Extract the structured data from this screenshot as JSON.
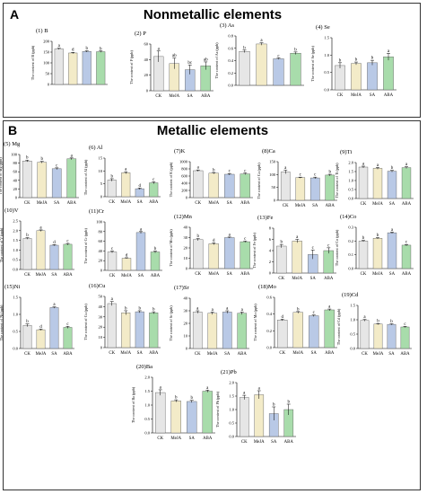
{
  "panel_a": {
    "letter": "A",
    "title": "Nonmetallic elements"
  },
  "panel_b": {
    "letter": "B",
    "title": "Metallic elements"
  },
  "colors": {
    "CK": "#e6e6e6",
    "MeJA": "#f3ebc8",
    "SA": "#b9c9e6",
    "ABA": "#a8dcab"
  },
  "chart_data": [
    {
      "type": "bar",
      "title": "(1) B",
      "ylabel": "The content of B (ppb)",
      "categories": [
        "CK",
        "MeJA",
        "SA",
        "ABA"
      ],
      "values": [
        165,
        146,
        153,
        152
      ],
      "errors": [
        3,
        3,
        3,
        3
      ],
      "letters": [
        "a",
        "d",
        "b",
        "b"
      ],
      "ylim": [
        0,
        200
      ],
      "yticks": [
        0,
        50,
        100,
        150,
        200
      ],
      "show_x": false
    },
    {
      "type": "bar",
      "title": "(2) P",
      "ylabel": "The content of P (ppb)",
      "categories": [
        "CK",
        "MeJA",
        "SA",
        "ABA"
      ],
      "values": [
        44,
        35,
        27,
        32
      ],
      "errors": [
        7,
        7,
        6,
        5
      ],
      "letters": [
        "a",
        "ab",
        "bc",
        "ab"
      ],
      "ylim": [
        0,
        60
      ],
      "yticks": [
        0,
        20,
        40,
        60
      ],
      "show_x": true
    },
    {
      "type": "bar",
      "title": "(3) As",
      "ylabel": "The content of As (ppb)",
      "categories": [
        "CK",
        "MeJA",
        "SA",
        "ABA"
      ],
      "values": [
        0.55,
        0.67,
        0.43,
        0.52
      ],
      "errors": [
        0.02,
        0.02,
        0.01,
        0.02
      ],
      "letters": [
        "b",
        "a",
        "c",
        "b"
      ],
      "ylim": [
        0,
        0.8
      ],
      "yticks": [
        0.0,
        0.2,
        0.4,
        0.6,
        0.8
      ],
      "show_x": false
    },
    {
      "type": "bar",
      "title": "(4) Se",
      "ylabel": "The content of Se (ppb)",
      "categories": [
        "CK",
        "MeJA",
        "SA",
        "ABA"
      ],
      "values": [
        0.7,
        0.76,
        0.78,
        0.95
      ],
      "errors": [
        0.08,
        0.04,
        0.07,
        0.1
      ],
      "letters": [
        "b",
        "b",
        "b",
        "a"
      ],
      "ylim": [
        0,
        1.5
      ],
      "yticks": [
        0.0,
        0.5,
        1.0,
        1.5
      ],
      "show_x": true
    },
    {
      "type": "bar",
      "title": "(5) Mg",
      "ylabel": "The content of Mg (ppb)",
      "categories": [
        "CK",
        "MeJA",
        "SA",
        "ABA"
      ],
      "values": [
        85,
        82,
        67,
        90
      ],
      "errors": [
        2,
        2,
        2,
        2
      ],
      "letters": [
        "b",
        "b",
        "c",
        "a"
      ],
      "ylim": [
        0,
        100
      ],
      "yticks": [
        0,
        20,
        40,
        60,
        80,
        100
      ],
      "show_x": true
    },
    {
      "type": "bar",
      "title": "(6) Al",
      "ylabel": "The content of Al (ppb)",
      "categories": [
        "CK",
        "MeJA",
        "SA",
        "ABA"
      ],
      "values": [
        6.5,
        9.3,
        3.1,
        5.4
      ],
      "errors": [
        0.5,
        0.4,
        0.3,
        0.4
      ],
      "letters": [
        "b",
        "a",
        "d",
        "c"
      ],
      "ylim": [
        0,
        15
      ],
      "yticks": [
        0,
        5,
        10,
        15
      ],
      "show_x": true
    },
    {
      "type": "bar",
      "title": "(7)K",
      "ylabel": "The content of K (ppb)",
      "categories": [
        "CK",
        "MeJA",
        "SA",
        "ABA"
      ],
      "values": [
        750,
        680,
        650,
        660
      ],
      "errors": [
        20,
        20,
        20,
        20
      ],
      "letters": [
        "a",
        "b",
        "c",
        "c"
      ],
      "ylim": [
        0,
        1000
      ],
      "yticks": [
        0,
        200,
        400,
        600,
        800,
        1000
      ],
      "show_x": true
    },
    {
      "type": "bar",
      "title": "(8)Ca",
      "ylabel": "The content of Ca (ppb)",
      "categories": [
        "CK",
        "MeJA",
        "SA",
        "ABA"
      ],
      "values": [
        110,
        88,
        87,
        98
      ],
      "errors": [
        7,
        2,
        3,
        3
      ],
      "letters": [
        "a",
        "c",
        "c",
        "b"
      ],
      "ylim": [
        0,
        150
      ],
      "yticks": [
        0,
        50,
        100,
        150
      ],
      "show_x": true
    },
    {
      "type": "bar",
      "title": "(9)Ti",
      "ylabel": "The content of Ti (ppb)",
      "categories": [
        "CK",
        "MeJA",
        "SA",
        "ABA"
      ],
      "values": [
        1.75,
        1.68,
        1.52,
        1.72
      ],
      "errors": [
        0.05,
        0.05,
        0.05,
        0.05
      ],
      "letters": [
        "a",
        "a",
        "b",
        "a"
      ],
      "ylim": [
        0,
        2.0
      ],
      "yticks": [
        0.0,
        0.5,
        1.0,
        1.5,
        2.0
      ],
      "show_x": true
    },
    {
      "type": "bar",
      "title": "(10)V",
      "ylabel": "The content of V (ppb)",
      "categories": [
        "CK",
        "MeJA",
        "SA",
        "ABA"
      ],
      "values": [
        1.6,
        2.0,
        1.25,
        1.3
      ],
      "errors": [
        0.04,
        0.04,
        0.03,
        0.04
      ],
      "letters": [
        "b",
        "a",
        "d",
        "c"
      ],
      "ylim": [
        0,
        2.5
      ],
      "yticks": [
        0.0,
        0.5,
        1.0,
        1.5,
        2.0,
        2.5
      ],
      "show_x": true
    },
    {
      "type": "bar",
      "title": "(11)Cr",
      "ylabel": "The content of Cr (ppb)",
      "categories": [
        "CK",
        "MeJA",
        "SA",
        "ABA"
      ],
      "values": [
        38,
        25,
        78,
        38
      ],
      "errors": [
        2,
        1,
        2,
        2
      ],
      "letters": [
        "c",
        "d",
        "a",
        "b"
      ],
      "ylim": [
        0,
        100
      ],
      "yticks": [
        0,
        20,
        40,
        60,
        80,
        100
      ],
      "show_x": true
    },
    {
      "type": "bar",
      "title": "(12)Mn",
      "ylabel": "The content of Mn (ppb)",
      "categories": [
        "CK",
        "MeJA",
        "SA",
        "ABA"
      ],
      "values": [
        28,
        24,
        30,
        26
      ],
      "errors": [
        1,
        1,
        0.5,
        0.6
      ],
      "letters": [
        "b",
        "d",
        "a",
        "c"
      ],
      "ylim": [
        0,
        40
      ],
      "yticks": [
        0,
        10,
        20,
        30,
        40
      ],
      "show_x": true
    },
    {
      "type": "bar",
      "title": "(13)Fe",
      "ylabel": "The content of Fe (ppb)",
      "categories": [
        "CK",
        "MeJA",
        "SA",
        "ABA"
      ],
      "values": [
        4.8,
        5.7,
        3.3,
        4.0
      ],
      "errors": [
        0.3,
        0.3,
        0.8,
        0.5
      ],
      "letters": [
        "b",
        "a",
        "c",
        "c"
      ],
      "ylim": [
        0,
        8
      ],
      "yticks": [
        0,
        2,
        4,
        6,
        8
      ],
      "show_x": true
    },
    {
      "type": "bar",
      "title": "(14)Co",
      "ylabel": "The content of Co (ppb)",
      "categories": [
        "CK",
        "MeJA",
        "SA",
        "ABA"
      ],
      "values": [
        0.2,
        0.22,
        0.26,
        0.17
      ],
      "errors": [
        0.005,
        0.005,
        0.005,
        0.005
      ],
      "letters": [
        "b",
        "b",
        "a",
        "c"
      ],
      "ylim": [
        0,
        0.3
      ],
      "yticks": [
        0.0,
        0.1,
        0.2,
        0.3
      ],
      "show_x": true
    },
    {
      "type": "bar",
      "title": "(15)Ni",
      "ylabel": "The content of Ni (ppb)",
      "categories": [
        "CK",
        "MeJA",
        "SA",
        "ABA"
      ],
      "values": [
        0.68,
        0.55,
        1.2,
        0.62
      ],
      "errors": [
        0.04,
        0.02,
        0.02,
        0.03
      ],
      "letters": [
        "b",
        "d",
        "a",
        "c"
      ],
      "ylim": [
        0,
        1.5
      ],
      "yticks": [
        0.0,
        0.5,
        1.0,
        1.5
      ],
      "show_x": true
    },
    {
      "type": "bar",
      "title": "(16)Cu",
      "ylabel": "The content of Cu (ppb)",
      "categories": [
        "CK",
        "MeJA",
        "SA",
        "ABA"
      ],
      "values": [
        43,
        34,
        35,
        34
      ],
      "errors": [
        2,
        2,
        1,
        1
      ],
      "letters": [
        "a",
        "b",
        "b",
        "b"
      ],
      "ylim": [
        0,
        50
      ],
      "yticks": [
        0,
        10,
        20,
        30,
        40,
        50
      ],
      "show_x": true
    },
    {
      "type": "bar",
      "title": "(17)Sr",
      "ylabel": "The content of Sr (ppb)",
      "categories": [
        "CK",
        "MeJA",
        "SA",
        "ABA"
      ],
      "values": [
        29,
        28,
        29,
        28
      ],
      "errors": [
        1,
        1,
        1,
        1
      ],
      "letters": [
        "a",
        "a",
        "a",
        "a"
      ],
      "ylim": [
        0,
        40
      ],
      "yticks": [
        0,
        10,
        20,
        30,
        40
      ],
      "show_x": true
    },
    {
      "type": "bar",
      "title": "(18)Mo",
      "ylabel": "The content of Mo (ppb)",
      "categories": [
        "CK",
        "MeJA",
        "SA",
        "ABA"
      ],
      "values": [
        0.33,
        0.42,
        0.38,
        0.45
      ],
      "errors": [
        0.01,
        0.01,
        0.01,
        0.01
      ],
      "letters": [
        "d",
        "b",
        "c",
        "a"
      ],
      "ylim": [
        0,
        0.6
      ],
      "yticks": [
        0.0,
        0.2,
        0.4,
        0.6
      ],
      "show_x": true
    },
    {
      "type": "bar",
      "title": "(19)Cd",
      "ylabel": "The content of Cd (ppb)",
      "categories": [
        "CK",
        "MeJA",
        "SA",
        "ABA"
      ],
      "values": [
        0.98,
        0.85,
        0.84,
        0.75
      ],
      "errors": [
        0.03,
        0.02,
        0.02,
        0.02
      ],
      "letters": [
        "a",
        "b",
        "b",
        "c"
      ],
      "ylim": [
        0,
        1.5
      ],
      "yticks": [
        0.0,
        0.5,
        1.0,
        1.5
      ],
      "show_x": true
    },
    {
      "type": "bar",
      "title": "(20)Ba",
      "ylabel": "The content of Ba (ppb)",
      "categories": [
        "CK",
        "MeJA",
        "SA",
        "ABA"
      ],
      "values": [
        1.45,
        1.15,
        1.13,
        1.5
      ],
      "errors": [
        0.1,
        0.04,
        0.04,
        0.04
      ],
      "letters": [
        "a",
        "b",
        "b",
        "a"
      ],
      "ylim": [
        0,
        2.0
      ],
      "yticks": [
        0.0,
        0.5,
        1.0,
        1.5,
        2.0
      ],
      "show_x": true
    },
    {
      "type": "bar",
      "title": "(21)Pb",
      "ylabel": "The content of Pb (ppb)",
      "categories": [
        "CK",
        "MeJA",
        "SA",
        "ABA"
      ],
      "values": [
        1.45,
        1.55,
        0.85,
        1.0
      ],
      "errors": [
        0.08,
        0.15,
        0.25,
        0.2
      ],
      "letters": [
        "a",
        "a",
        "b",
        "b"
      ],
      "ylim": [
        0,
        2.0
      ],
      "yticks": [
        0.0,
        0.5,
        1.0,
        1.5,
        2.0
      ],
      "show_x": true
    }
  ]
}
